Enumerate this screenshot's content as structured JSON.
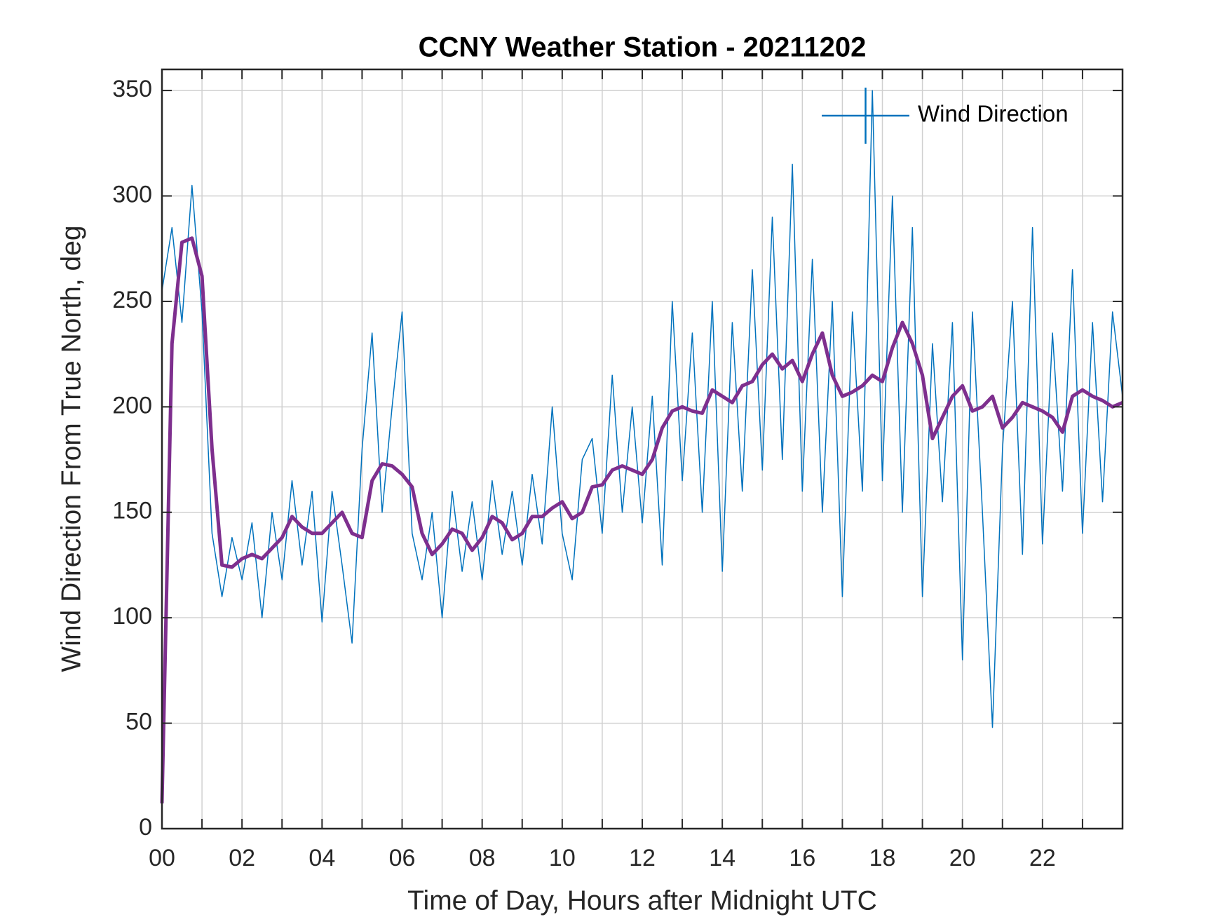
{
  "chart_data": {
    "type": "line",
    "title": "CCNY Weather Station - 20211202",
    "xlabel": "Time of Day, Hours after Midnight UTC",
    "ylabel": "Wind Direction From True North, deg",
    "xlim": [
      0,
      24
    ],
    "ylim": [
      0,
      360
    ],
    "xticks": [
      {
        "value": 0,
        "label": "00"
      },
      {
        "value": 2,
        "label": "02"
      },
      {
        "value": 4,
        "label": "04"
      },
      {
        "value": 6,
        "label": "06"
      },
      {
        "value": 8,
        "label": "08"
      },
      {
        "value": 10,
        "label": "10"
      },
      {
        "value": 12,
        "label": "12"
      },
      {
        "value": 14,
        "label": "14"
      },
      {
        "value": 16,
        "label": "16"
      },
      {
        "value": 18,
        "label": "18"
      },
      {
        "value": 20,
        "label": "20"
      },
      {
        "value": 22,
        "label": "22"
      }
    ],
    "x_minor_grid": [
      1,
      3,
      5,
      7,
      9,
      11,
      13,
      15,
      17,
      19,
      21,
      23
    ],
    "yticks": [
      0,
      50,
      100,
      150,
      200,
      250,
      300,
      350
    ],
    "grid": true,
    "legend_position": "upper-right",
    "x": [
      0,
      0.25,
      0.5,
      0.75,
      1,
      1.25,
      1.5,
      1.75,
      2,
      2.25,
      2.5,
      2.75,
      3,
      3.25,
      3.5,
      3.75,
      4,
      4.25,
      4.5,
      4.75,
      5,
      5.25,
      5.5,
      5.75,
      6,
      6.25,
      6.5,
      6.75,
      7,
      7.25,
      7.5,
      7.75,
      8,
      8.25,
      8.5,
      8.75,
      9,
      9.25,
      9.5,
      9.75,
      10,
      10.25,
      10.5,
      10.75,
      11,
      11.25,
      11.5,
      11.75,
      12,
      12.25,
      12.5,
      12.75,
      13,
      13.25,
      13.5,
      13.75,
      14,
      14.25,
      14.5,
      14.75,
      15,
      15.25,
      15.5,
      15.75,
      16,
      16.25,
      16.5,
      16.75,
      17,
      17.25,
      17.5,
      17.75,
      18,
      18.25,
      18.5,
      18.75,
      19,
      19.25,
      19.5,
      19.75,
      20,
      20.25,
      20.5,
      20.75,
      21,
      21.25,
      21.5,
      21.75,
      22,
      22.25,
      22.5,
      22.75,
      23,
      23.25,
      23.5,
      23.75,
      24
    ],
    "series": [
      {
        "name": "Wind Direction",
        "color": "#0072bd",
        "width": 1.5,
        "values": [
          255,
          285,
          240,
          305,
          245,
          140,
          110,
          138,
          118,
          145,
          100,
          150,
          118,
          165,
          125,
          160,
          98,
          160,
          125,
          88,
          180,
          235,
          150,
          200,
          245,
          140,
          118,
          150,
          100,
          160,
          122,
          155,
          118,
          165,
          130,
          160,
          125,
          168,
          135,
          200,
          140,
          118,
          175,
          185,
          140,
          215,
          150,
          200,
          145,
          205,
          125,
          250,
          165,
          235,
          150,
          250,
          122,
          240,
          160,
          265,
          170,
          290,
          175,
          315,
          160,
          270,
          150,
          250,
          110,
          245,
          160,
          350,
          165,
          300,
          150,
          285,
          110,
          230,
          155,
          240,
          80,
          245,
          150,
          48,
          180,
          250,
          130,
          285,
          135,
          235,
          160,
          265,
          140,
          240,
          155,
          245,
          205
        ]
      },
      {
        "color": "#7e2f8e",
        "width": 5,
        "values": [
          12,
          230,
          278,
          280,
          262,
          180,
          125,
          124,
          128,
          130,
          128,
          133,
          138,
          148,
          143,
          140,
          140,
          145,
          150,
          140,
          138,
          165,
          173,
          172,
          168,
          162,
          140,
          130,
          135,
          142,
          140,
          132,
          138,
          148,
          145,
          137,
          140,
          148,
          148,
          152,
          155,
          147,
          150,
          162,
          163,
          170,
          172,
          170,
          168,
          175,
          190,
          198,
          200,
          198,
          197,
          208,
          205,
          202,
          210,
          212,
          220,
          225,
          218,
          222,
          212,
          225,
          235,
          215,
          205,
          207,
          210,
          215,
          212,
          228,
          240,
          230,
          215,
          185,
          195,
          205,
          210,
          198,
          200,
          205,
          190,
          195,
          202,
          200,
          198,
          195,
          188,
          205,
          208,
          205,
          203,
          200,
          202
        ]
      }
    ]
  }
}
